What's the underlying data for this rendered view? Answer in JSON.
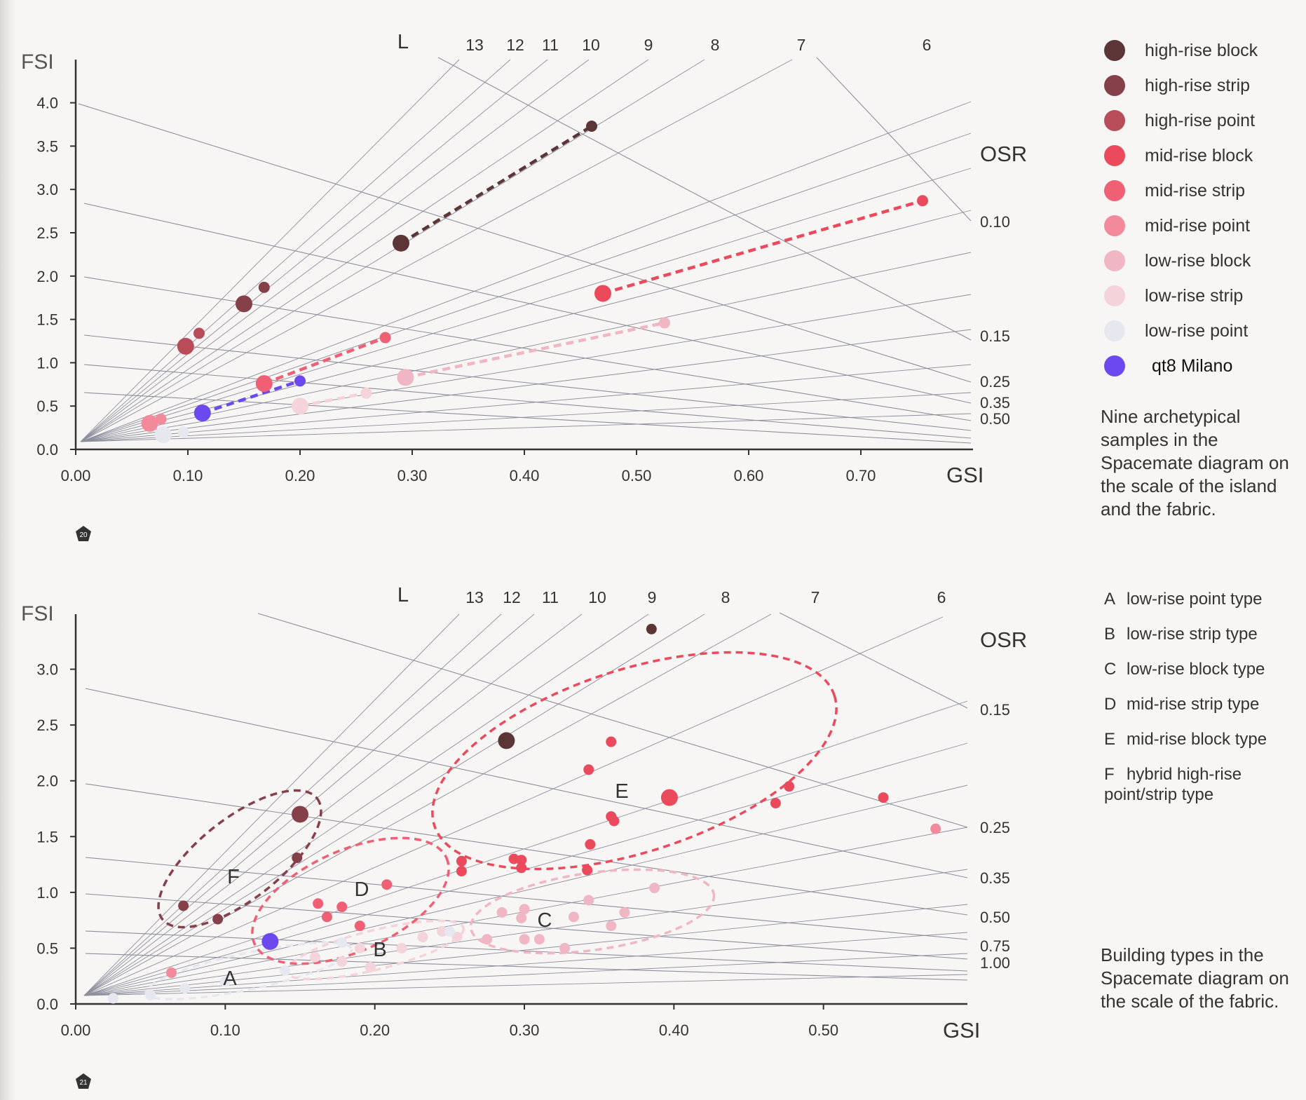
{
  "colors": {
    "high_rise_block": "#5c3536",
    "high_rise_strip": "#86404a",
    "high_rise_point": "#b84c58",
    "mid_rise_block": "#ea4a5c",
    "mid_rise_strip": "#ef6075",
    "mid_rise_point": "#f28a9b",
    "low_rise_block": "#f1b6c3",
    "low_rise_strip": "#f4d3da",
    "low_rise_point": "#e7e7ef",
    "qt8": "#6b49ef",
    "guide": "#8d8e9c",
    "axis": "#333333"
  },
  "legend": [
    {
      "label": "high-rise block",
      "color": "#5c3536",
      "icon": "dot-icon"
    },
    {
      "label": "high-rise strip",
      "color": "#86404a",
      "icon": "dot-icon"
    },
    {
      "label": "high-rise point",
      "color": "#b84c58",
      "icon": "dot-icon"
    },
    {
      "label": "mid-rise block",
      "color": "#ea4a5c",
      "icon": "dot-icon"
    },
    {
      "label": "mid-rise strip",
      "color": "#ef6075",
      "icon": "dot-icon"
    },
    {
      "label": "mid-rise point",
      "color": "#f28a9b",
      "icon": "dot-icon"
    },
    {
      "label": "low-rise block",
      "color": "#f1b6c3",
      "icon": "dot-icon"
    },
    {
      "label": "low-rise strip",
      "color": "#f4d3da",
      "icon": "dot-icon"
    },
    {
      "label": "low-rise point",
      "color": "#e7e7ef",
      "icon": "dot-icon"
    },
    {
      "label": "qt8 Milano",
      "color": "#6b49ef",
      "icon": "dot-icon"
    }
  ],
  "caption_top": "Nine archetypical samples in the Spacemate diagram on the scale of the island and the fabric.",
  "caption_bottom": "Building types in the Spacemate diagram on the scale of the fabric.",
  "types": [
    {
      "key": "A",
      "label": "low-rise point type"
    },
    {
      "key": "B",
      "label": "low-rise strip type"
    },
    {
      "key": "C",
      "label": "low-rise block type"
    },
    {
      "key": "D",
      "label": "mid-rise strip type"
    },
    {
      "key": "E",
      "label": "mid-rise block type"
    },
    {
      "key": "F",
      "label": "hybrid high-rise point/strip type"
    }
  ],
  "figure_badges": [
    "20",
    "21"
  ],
  "chart_data": [
    {
      "type": "scatter",
      "figure": "20",
      "xlabel": "GSI",
      "ylabel": "FSI",
      "xlim": [
        0,
        0.8
      ],
      "ylim": [
        0,
        4.5
      ],
      "x_ticks": [
        "0.00",
        "0.10",
        "0.20",
        "0.30",
        "0.40",
        "0.50",
        "0.60",
        "0.70"
      ],
      "y_ticks": [
        "0.0",
        "0.5",
        "1.0",
        "1.5",
        "2.0",
        "2.5",
        "3.0",
        "3.5",
        "4.0"
      ],
      "L_title": "L",
      "L_values": [
        "13",
        "12",
        "11",
        "10",
        "9",
        "8",
        "7",
        "6"
      ],
      "OSR_title": "OSR",
      "OSR_values": [
        "0.10",
        "0.15",
        "0.25",
        "0.35",
        "0.50"
      ],
      "series": [
        {
          "name": "high-rise block",
          "points": [
            [
              0.29,
              2.38
            ],
            [
              0.46,
              3.73
            ]
          ],
          "connected": true
        },
        {
          "name": "high-rise strip",
          "points": [
            [
              0.15,
              1.68
            ],
            [
              0.168,
              1.87
            ]
          ],
          "connected": false
        },
        {
          "name": "high-rise point",
          "points": [
            [
              0.098,
              1.19
            ],
            [
              0.11,
              1.34
            ]
          ],
          "connected": false
        },
        {
          "name": "mid-rise block",
          "points": [
            [
              0.47,
              1.8
            ],
            [
              0.755,
              2.87
            ]
          ],
          "connected": true
        },
        {
          "name": "mid-rise strip",
          "points": [
            [
              0.168,
              0.76
            ],
            [
              0.276,
              1.29
            ]
          ],
          "connected": true
        },
        {
          "name": "mid-rise point",
          "points": [
            [
              0.066,
              0.3
            ],
            [
              0.076,
              0.35
            ]
          ],
          "connected": false
        },
        {
          "name": "low-rise block",
          "points": [
            [
              0.294,
              0.83
            ],
            [
              0.525,
              1.46
            ]
          ],
          "connected": true
        },
        {
          "name": "low-rise strip",
          "points": [
            [
              0.2,
              0.5
            ],
            [
              0.259,
              0.65
            ]
          ],
          "connected": true
        },
        {
          "name": "low-rise point",
          "points": [
            [
              0.078,
              0.17
            ],
            [
              0.096,
              0.2
            ]
          ],
          "connected": false
        },
        {
          "name": "qt8 Milano",
          "points": [
            [
              0.113,
              0.42
            ],
            [
              0.2,
              0.79
            ]
          ],
          "connected": true
        }
      ]
    },
    {
      "type": "scatter",
      "figure": "21",
      "xlabel": "GSI",
      "ylabel": "FSI",
      "xlim": [
        0,
        0.6
      ],
      "ylim": [
        0,
        3.5
      ],
      "x_ticks": [
        "0.00",
        "0.10",
        "0.20",
        "0.30",
        "0.40",
        "0.50"
      ],
      "y_ticks": [
        "0.0",
        "0.5",
        "1.0",
        "1.5",
        "2.0",
        "2.5",
        "3.0"
      ],
      "L_title": "L",
      "L_values": [
        "13",
        "12",
        "11",
        "10",
        "9",
        "8",
        "7",
        "6"
      ],
      "OSR_title": "OSR",
      "OSR_values": [
        "0.15",
        "0.25",
        "0.35",
        "0.50",
        "0.75",
        "1.00"
      ],
      "clusters": [
        {
          "label": "A",
          "center": [
            0.07,
            0.25
          ]
        },
        {
          "label": "B",
          "center": [
            0.2,
            0.48
          ]
        },
        {
          "label": "C",
          "center": [
            0.315,
            0.77
          ]
        },
        {
          "label": "D",
          "center": [
            0.195,
            1.0
          ]
        },
        {
          "label": "E",
          "center": [
            0.36,
            1.99
          ]
        },
        {
          "label": "F",
          "center": [
            0.105,
            1.13
          ]
        }
      ],
      "points": [
        {
          "type": "high-rise block",
          "x": 0.385,
          "y": 3.36
        },
        {
          "type": "high-rise block",
          "x": 0.288,
          "y": 2.36
        },
        {
          "type": "high-rise strip",
          "x": 0.15,
          "y": 1.7
        },
        {
          "type": "high-rise strip",
          "x": 0.148,
          "y": 1.31
        },
        {
          "type": "high-rise strip",
          "x": 0.072,
          "y": 0.88
        },
        {
          "type": "high-rise strip",
          "x": 0.095,
          "y": 0.76
        },
        {
          "type": "mid-rise block",
          "x": 0.358,
          "y": 2.35
        },
        {
          "type": "mid-rise block",
          "x": 0.343,
          "y": 2.1
        },
        {
          "type": "mid-rise block",
          "x": 0.397,
          "y": 1.85
        },
        {
          "type": "mid-rise block",
          "x": 0.358,
          "y": 1.68
        },
        {
          "type": "mid-rise block",
          "x": 0.36,
          "y": 1.64
        },
        {
          "type": "mid-rise block",
          "x": 0.344,
          "y": 1.43
        },
        {
          "type": "mid-rise block",
          "x": 0.342,
          "y": 1.2
        },
        {
          "type": "mid-rise block",
          "x": 0.477,
          "y": 1.95
        },
        {
          "type": "mid-rise block",
          "x": 0.468,
          "y": 1.8
        },
        {
          "type": "mid-rise block",
          "x": 0.54,
          "y": 1.85
        },
        {
          "type": "mid-rise block",
          "x": 0.258,
          "y": 1.28
        },
        {
          "type": "mid-rise block",
          "x": 0.258,
          "y": 1.19
        },
        {
          "type": "mid-rise block",
          "x": 0.293,
          "y": 1.3
        },
        {
          "type": "mid-rise block",
          "x": 0.298,
          "y": 1.29
        },
        {
          "type": "mid-rise block",
          "x": 0.298,
          "y": 1.22
        },
        {
          "type": "mid-rise strip",
          "x": 0.208,
          "y": 1.07
        },
        {
          "type": "mid-rise strip",
          "x": 0.162,
          "y": 0.9
        },
        {
          "type": "mid-rise strip",
          "x": 0.178,
          "y": 0.87
        },
        {
          "type": "mid-rise strip",
          "x": 0.168,
          "y": 0.78
        },
        {
          "type": "mid-rise strip",
          "x": 0.19,
          "y": 0.7
        },
        {
          "type": "mid-rise point",
          "x": 0.064,
          "y": 0.28
        },
        {
          "type": "mid-rise point",
          "x": 0.575,
          "y": 1.57
        },
        {
          "type": "low-rise block",
          "x": 0.387,
          "y": 1.04
        },
        {
          "type": "low-rise block",
          "x": 0.343,
          "y": 0.93
        },
        {
          "type": "low-rise block",
          "x": 0.3,
          "y": 0.85
        },
        {
          "type": "low-rise block",
          "x": 0.285,
          "y": 0.82
        },
        {
          "type": "low-rise block",
          "x": 0.298,
          "y": 0.77
        },
        {
          "type": "low-rise block",
          "x": 0.333,
          "y": 0.78
        },
        {
          "type": "low-rise block",
          "x": 0.367,
          "y": 0.82
        },
        {
          "type": "low-rise block",
          "x": 0.358,
          "y": 0.7
        },
        {
          "type": "low-rise block",
          "x": 0.275,
          "y": 0.58
        },
        {
          "type": "low-rise block",
          "x": 0.3,
          "y": 0.58
        },
        {
          "type": "low-rise block",
          "x": 0.31,
          "y": 0.58
        },
        {
          "type": "low-rise block",
          "x": 0.327,
          "y": 0.5
        },
        {
          "type": "low-rise strip",
          "x": 0.19,
          "y": 0.5
        },
        {
          "type": "low-rise strip",
          "x": 0.218,
          "y": 0.5
        },
        {
          "type": "low-rise strip",
          "x": 0.232,
          "y": 0.6
        },
        {
          "type": "low-rise strip",
          "x": 0.245,
          "y": 0.65
        },
        {
          "type": "low-rise strip",
          "x": 0.255,
          "y": 0.6
        },
        {
          "type": "low-rise strip",
          "x": 0.178,
          "y": 0.38
        },
        {
          "type": "low-rise strip",
          "x": 0.197,
          "y": 0.33
        },
        {
          "type": "low-rise strip",
          "x": 0.16,
          "y": 0.42
        },
        {
          "type": "low-rise point",
          "x": 0.073,
          "y": 0.14
        },
        {
          "type": "low-rise point",
          "x": 0.05,
          "y": 0.08
        },
        {
          "type": "low-rise point",
          "x": 0.1,
          "y": 0.2
        },
        {
          "type": "low-rise point",
          "x": 0.14,
          "y": 0.3
        },
        {
          "type": "low-rise point",
          "x": 0.178,
          "y": 0.55
        },
        {
          "type": "low-rise point",
          "x": 0.025,
          "y": 0.05
        },
        {
          "type": "low-rise point",
          "x": 0.25,
          "y": 0.65
        },
        {
          "type": "qt8 Milano",
          "x": 0.13,
          "y": 0.56
        }
      ]
    }
  ]
}
